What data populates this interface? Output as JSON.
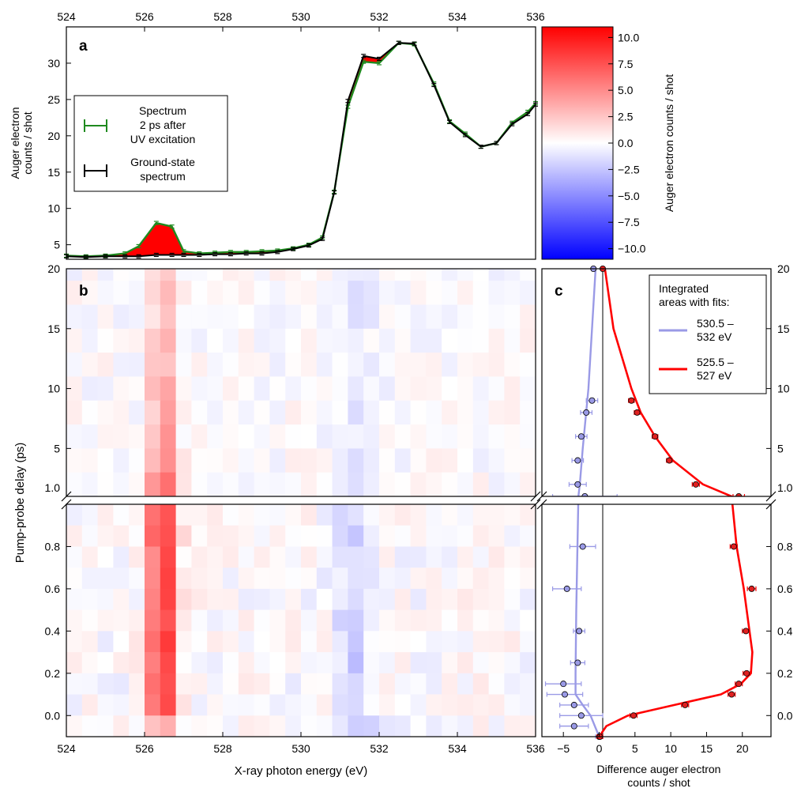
{
  "colors": {
    "red": "#ff0000",
    "green": "#1f8a1f",
    "black": "#000000",
    "lavender": "#9a9ae6",
    "blue": "#0000ff"
  },
  "chart_data": [
    {
      "id": "a",
      "type": "line",
      "panel_label": "a",
      "ylabel_lines": [
        "Auger electron",
        "counts / shot"
      ],
      "top_ticks": [
        "524",
        "526",
        "528",
        "530",
        "532",
        "534",
        "536"
      ],
      "xlim": [
        524,
        536
      ],
      "ylim": [
        3,
        35
      ],
      "yticks": [
        5,
        10,
        15,
        20,
        25,
        30
      ],
      "fill_between_series": "red",
      "legend": {
        "entries": [
          {
            "lines": [
              "Spectrum",
              "2 ps after",
              "UV excitation"
            ],
            "color": "green"
          },
          {
            "lines": [
              "Ground-state",
              "spectrum"
            ],
            "color": "black"
          }
        ]
      },
      "x": [
        524,
        524.5,
        525,
        525.5,
        525.85,
        526.3,
        526.7,
        527.0,
        527.4,
        527.8,
        528.2,
        528.6,
        529.0,
        529.4,
        529.8,
        530.2,
        530.55,
        530.85,
        531.2,
        531.6,
        532.0,
        532.5,
        532.9,
        533.4,
        533.8,
        534.2,
        534.6,
        535.0,
        535.4,
        535.8,
        536.0
      ],
      "series": [
        {
          "name": "Spectrum 2 ps after UV excitation",
          "color": "green",
          "values": [
            3.5,
            3.4,
            3.5,
            3.8,
            4.8,
            8.0,
            7.5,
            4.1,
            3.8,
            3.9,
            4.0,
            4.0,
            4.1,
            4.2,
            4.5,
            5.0,
            6.0,
            12.3,
            24.0,
            30.2,
            30.0,
            32.8,
            32.6,
            27.2,
            22.0,
            20.3,
            18.5,
            19.0,
            21.8,
            23.3,
            24.5
          ]
        },
        {
          "name": "Ground-state spectrum",
          "color": "black",
          "values": [
            3.4,
            3.3,
            3.4,
            3.4,
            3.4,
            3.6,
            3.6,
            3.6,
            3.6,
            3.7,
            3.7,
            3.8,
            3.8,
            4.0,
            4.4,
            4.9,
            5.8,
            12.2,
            24.8,
            31.0,
            30.6,
            32.8,
            32.7,
            27.0,
            21.9,
            20.1,
            18.5,
            19.0,
            21.6,
            23.0,
            24.3
          ]
        }
      ]
    },
    {
      "id": "colorbar",
      "type": "heatmap",
      "label": "Auger electron counts / shot",
      "range": [
        -11,
        11
      ],
      "ticks": [
        "10.0",
        "7.5",
        "5.0",
        "2.5",
        "0.0",
        "−2.5",
        "−5.0",
        "−7.5",
        "−10.0"
      ],
      "tick_values": [
        10,
        7.5,
        5,
        2.5,
        0,
        -2.5,
        -5,
        -7.5,
        -10
      ]
    },
    {
      "id": "b",
      "type": "heatmap",
      "panel_label": "b",
      "xlabel": "X-ray photon energy (eV)",
      "ylabel": "Pump-probe delay (ps)",
      "xlim": [
        524,
        536
      ],
      "xticks": [
        "524",
        "526",
        "528",
        "530",
        "532",
        "534",
        "536"
      ],
      "upper_yticks": [
        "20",
        "15",
        "10",
        "5",
        "1.0"
      ],
      "lower_yticks": [
        "1.0",
        "0.8",
        "0.6",
        "0.4",
        "0.2",
        "0.0"
      ],
      "upper_delays": [
        20,
        18,
        16,
        14,
        12,
        10,
        8,
        6,
        4,
        2
      ],
      "lower_delays": [
        0.95,
        0.85,
        0.75,
        0.65,
        0.55,
        0.45,
        0.35,
        0.25,
        0.15,
        0.05,
        -0.05
      ],
      "cell_width_ev": 0.4
    },
    {
      "id": "c",
      "type": "scatter",
      "panel_label": "c",
      "xlabel_lines": [
        "Difference auger electron",
        "counts / shot"
      ],
      "xlim": [
        -8,
        24
      ],
      "xticks": [
        "−5",
        "0",
        "5",
        "10",
        "15",
        "20"
      ],
      "xtick_values": [
        -5,
        0,
        5,
        10,
        15,
        20
      ],
      "upper_yticks": [
        "20",
        "15",
        "10",
        "5",
        "1.0"
      ],
      "lower_yticks": [
        "1.0",
        "0.8",
        "0.6",
        "0.4",
        "0.2",
        "0.0"
      ],
      "legend": {
        "title_lines": [
          "Integrated",
          "areas with fits:"
        ],
        "entries": [
          {
            "lines": [
              "530.5 –",
              "532 eV"
            ],
            "color": "lavender"
          },
          {
            "lines": [
              "525.5 –",
              "527 eV"
            ],
            "color": "red"
          }
        ]
      },
      "series": [
        {
          "name": "530.5 – 532 eV",
          "color": "lavender",
          "points": [
            {
              "t": 20,
              "v": -0.8,
              "err": 0.0
            },
            {
              "t": 9,
              "v": -1.0,
              "err": 0.8
            },
            {
              "t": 8,
              "v": -1.8,
              "err": 0.8
            },
            {
              "t": 6,
              "v": -2.5,
              "err": 0.8
            },
            {
              "t": 4,
              "v": -3.0,
              "err": 0.8
            },
            {
              "t": 2,
              "v": -3.0,
              "err": 1.2
            },
            {
              "t": 1.0,
              "v": -2.0,
              "err": 4.5
            },
            {
              "t": 0.8,
              "v": -2.3,
              "err": 1.8
            },
            {
              "t": 0.6,
              "v": -4.5,
              "err": 2.0
            },
            {
              "t": 0.4,
              "v": -2.8,
              "err": 0.8
            },
            {
              "t": 0.25,
              "v": -3.0,
              "err": 1.0
            },
            {
              "t": 0.15,
              "v": -5.0,
              "err": 2.5
            },
            {
              "t": 0.1,
              "v": -4.8,
              "err": 2.5
            },
            {
              "t": 0.05,
              "v": -3.5,
              "err": 2.0
            },
            {
              "t": 0.0,
              "v": -2.5,
              "err": 3.0
            },
            {
              "t": -0.05,
              "v": -3.5,
              "err": 2.0
            },
            {
              "t": -0.1,
              "v": 0.0,
              "err": 0.5
            }
          ],
          "fit": [
            {
              "t": 20,
              "v": -0.5
            },
            {
              "t": 10,
              "v": -1.5
            },
            {
              "t": 5,
              "v": -2.3
            },
            {
              "t": 2,
              "v": -2.7
            },
            {
              "t": 1.0,
              "v": -2.9
            },
            {
              "t": 0.5,
              "v": -3.2
            },
            {
              "t": 0.2,
              "v": -3.3
            },
            {
              "t": 0.1,
              "v": -3.3
            },
            {
              "t": 0.05,
              "v": -2.3
            },
            {
              "t": 0.0,
              "v": -1.2
            },
            {
              "t": -0.1,
              "v": 0.0
            }
          ]
        },
        {
          "name": "525.5 – 527 eV",
          "color": "red",
          "points": [
            {
              "t": 20,
              "v": 0.5,
              "err": 0.0
            },
            {
              "t": 9,
              "v": 4.5,
              "err": 0.4
            },
            {
              "t": 8,
              "v": 5.3,
              "err": 0.4
            },
            {
              "t": 6,
              "v": 7.8,
              "err": 0.4
            },
            {
              "t": 4,
              "v": 9.8,
              "err": 0.4
            },
            {
              "t": 2,
              "v": 13.5,
              "err": 0.5
            },
            {
              "t": 1.0,
              "v": 19.5,
              "err": 0.8
            },
            {
              "t": 0.8,
              "v": 18.8,
              "err": 0.5
            },
            {
              "t": 0.6,
              "v": 21.3,
              "err": 0.6
            },
            {
              "t": 0.4,
              "v": 20.5,
              "err": 0.5
            },
            {
              "t": 0.2,
              "v": 20.6,
              "err": 0.5
            },
            {
              "t": 0.15,
              "v": 19.5,
              "err": 0.5
            },
            {
              "t": 0.1,
              "v": 18.5,
              "err": 0.5
            },
            {
              "t": 0.05,
              "v": 12.0,
              "err": 0.5
            },
            {
              "t": 0.0,
              "v": 4.8,
              "err": 0.5
            },
            {
              "t": -0.1,
              "v": 0.1,
              "err": 0.4
            }
          ],
          "fit": [
            {
              "t": 20,
              "v": 0.8
            },
            {
              "t": 15,
              "v": 2.0
            },
            {
              "t": 10,
              "v": 4.5
            },
            {
              "t": 8,
              "v": 5.8
            },
            {
              "t": 6,
              "v": 7.8
            },
            {
              "t": 4,
              "v": 10.3
            },
            {
              "t": 2,
              "v": 14.5
            },
            {
              "t": 1.0,
              "v": 18.5
            },
            {
              "t": 0.8,
              "v": 19.2
            },
            {
              "t": 0.6,
              "v": 20.2
            },
            {
              "t": 0.4,
              "v": 21.0
            },
            {
              "t": 0.3,
              "v": 21.4
            },
            {
              "t": 0.2,
              "v": 21.2
            },
            {
              "t": 0.15,
              "v": 19.8
            },
            {
              "t": 0.1,
              "v": 17.0
            },
            {
              "t": 0.05,
              "v": 10.5
            },
            {
              "t": 0.0,
              "v": 4.0
            },
            {
              "t": -0.05,
              "v": 1.0
            },
            {
              "t": -0.1,
              "v": 0.0
            }
          ]
        }
      ]
    }
  ]
}
